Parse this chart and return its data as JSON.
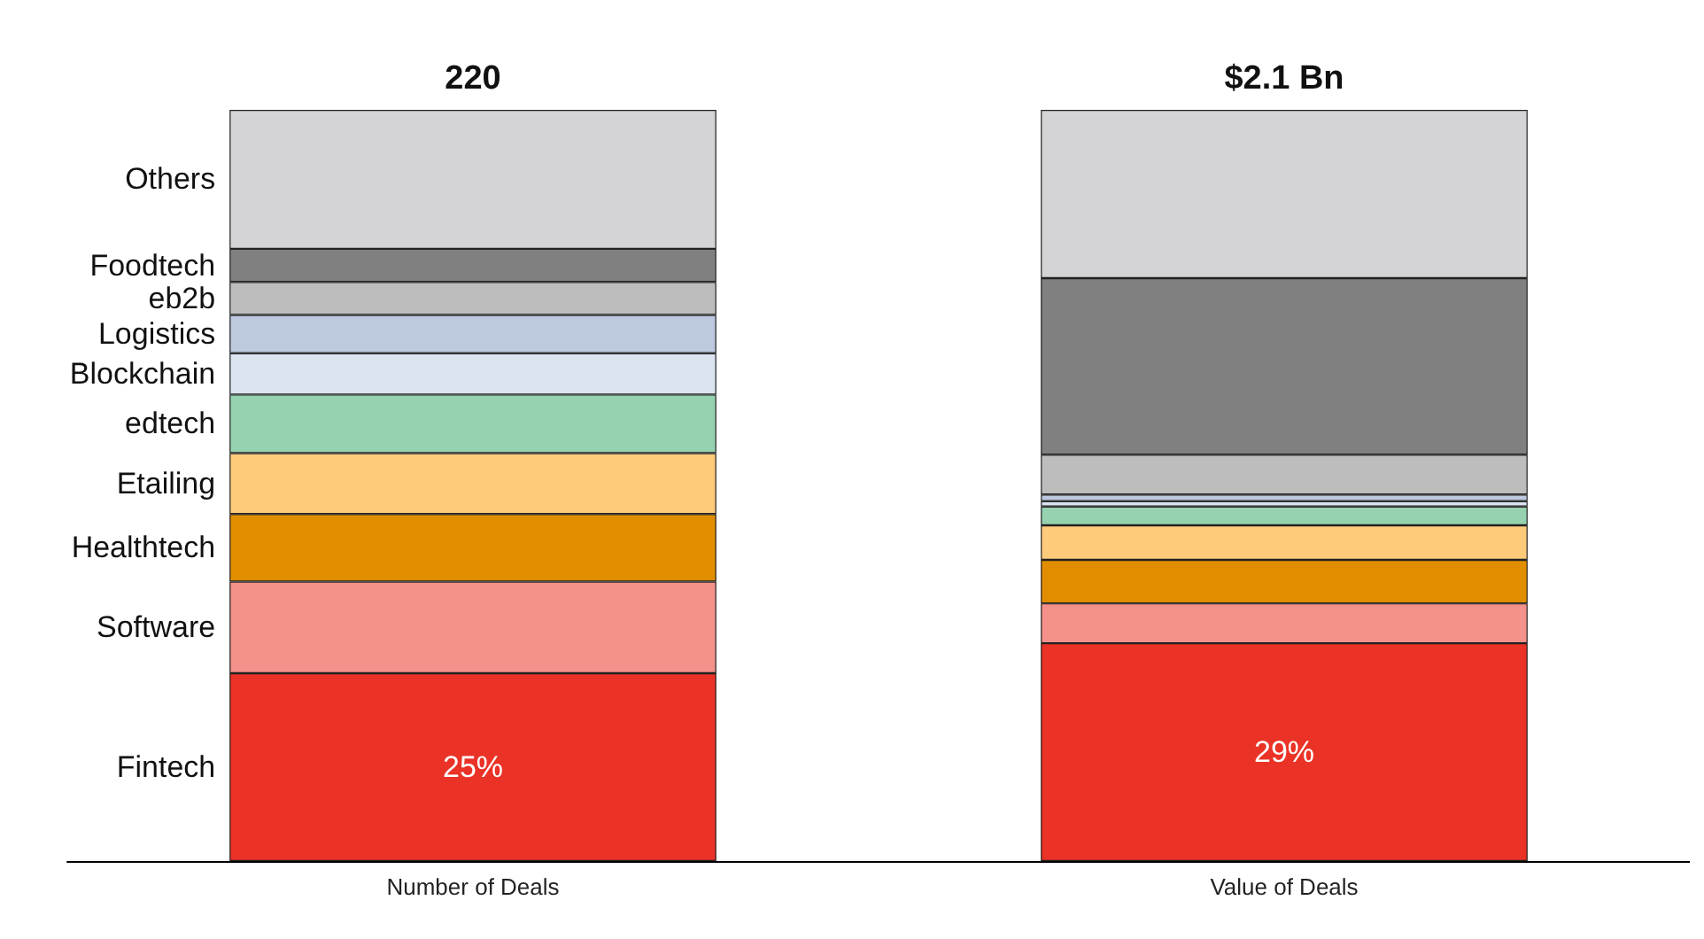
{
  "chart_data": {
    "type": "bar",
    "stacked": true,
    "legend": false,
    "categories": [
      "Number of Deals",
      "Value of Deals"
    ],
    "annotations": [
      "220",
      "$2.1 Bn"
    ],
    "series": [
      {
        "name": "Fintech",
        "color": "#ea3226",
        "values": [
          25,
          29
        ],
        "value_labels": [
          "25%",
          "29%"
        ]
      },
      {
        "name": "Software",
        "color": "#f4918a",
        "values": [
          12.2,
          5.3
        ]
      },
      {
        "name": "Healthtech",
        "color": "#e08e00",
        "values": [
          9,
          5.8
        ]
      },
      {
        "name": "Etailing",
        "color": "#fdcb7a",
        "values": [
          8.1,
          4.6
        ]
      },
      {
        "name": "edtech",
        "color": "#97d2b0",
        "values": [
          7.8,
          2.5
        ]
      },
      {
        "name": "Blockchain",
        "color": "#dbe4f0",
        "values": [
          5.5,
          0.7
        ]
      },
      {
        "name": "Logistics",
        "color": "#bcc9df",
        "values": [
          5.1,
          0.9
        ]
      },
      {
        "name": "eb2b",
        "color": "#bdbdbd",
        "values": [
          4.4,
          5.3
        ]
      },
      {
        "name": "Foodtech",
        "color": "#808080",
        "values": [
          4.4,
          23.5
        ]
      },
      {
        "name": "Others",
        "color": "#d4d4d6",
        "values": [
          18.5,
          22.4
        ]
      }
    ]
  }
}
